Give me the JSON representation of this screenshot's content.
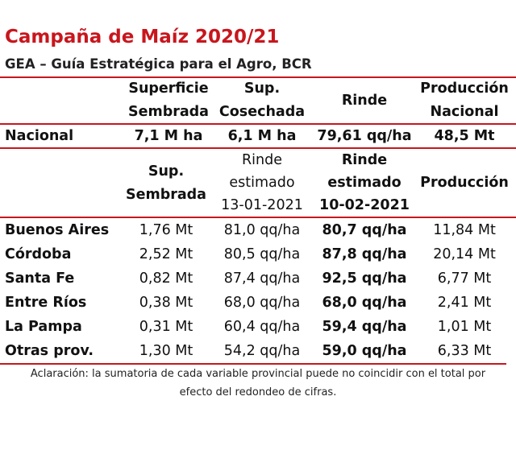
{
  "title": "Campaña de Maíz 2020/21",
  "subtitle": "GEA – Guía Estratégica para el Agro, BCR",
  "national_header": {
    "superficie": [
      "Superficie",
      "Sembrada"
    ],
    "cosechada": [
      "Sup.",
      "Cosechada"
    ],
    "rinde": "Rinde",
    "produccion": [
      "Producción",
      "Nacional"
    ]
  },
  "national_row": {
    "label": "Nacional",
    "superficie": "7,1 M ha",
    "cosechada": "6,1 M ha",
    "rinde": "79,61 qq/ha",
    "produccion": "48,5 Mt"
  },
  "province_header": {
    "sembrada": [
      "Sup.",
      "Sembrada"
    ],
    "rinde_prev": [
      "Rinde",
      "estimado",
      "13-01-2021"
    ],
    "rinde_curr": [
      "Rinde",
      "estimado",
      "10-02-2021"
    ],
    "produccion": "Producción"
  },
  "provinces": [
    {
      "name": "Buenos Aires",
      "sembrada": "1,76 Mt",
      "rinde_prev": "81,0 qq/ha",
      "rinde_curr": "80,7 qq/ha",
      "produccion": "11,84 Mt"
    },
    {
      "name": "Córdoba",
      "sembrada": "2,52 Mt",
      "rinde_prev": "80,5 qq/ha",
      "rinde_curr": "87,8 qq/ha",
      "produccion": "20,14 Mt"
    },
    {
      "name": "Santa Fe",
      "sembrada": "0,82 Mt",
      "rinde_prev": "87,4 qq/ha",
      "rinde_curr": "92,5 qq/ha",
      "produccion": "6,77 Mt"
    },
    {
      "name": "Entre Ríos",
      "sembrada": "0,38 Mt",
      "rinde_prev": "68,0 qq/ha",
      "rinde_curr": "68,0 qq/ha",
      "produccion": "2,41 Mt"
    },
    {
      "name": "La Pampa",
      "sembrada": "0,31 Mt",
      "rinde_prev": "60,4 qq/ha",
      "rinde_curr": "59,4 qq/ha",
      "produccion": "1,01 Mt"
    },
    {
      "name": "Otras prov.",
      "sembrada": "1,30 Mt",
      "rinde_prev": "54,2 qq/ha",
      "rinde_curr": "59,0 qq/ha",
      "produccion": "6,33 Mt"
    }
  ],
  "note": [
    "Aclaración: la sumatoria de cada variable provincial puede no coincidir con el total por",
    "efecto del redondeo de cifras."
  ],
  "colors": {
    "accent": "#c8161d"
  }
}
